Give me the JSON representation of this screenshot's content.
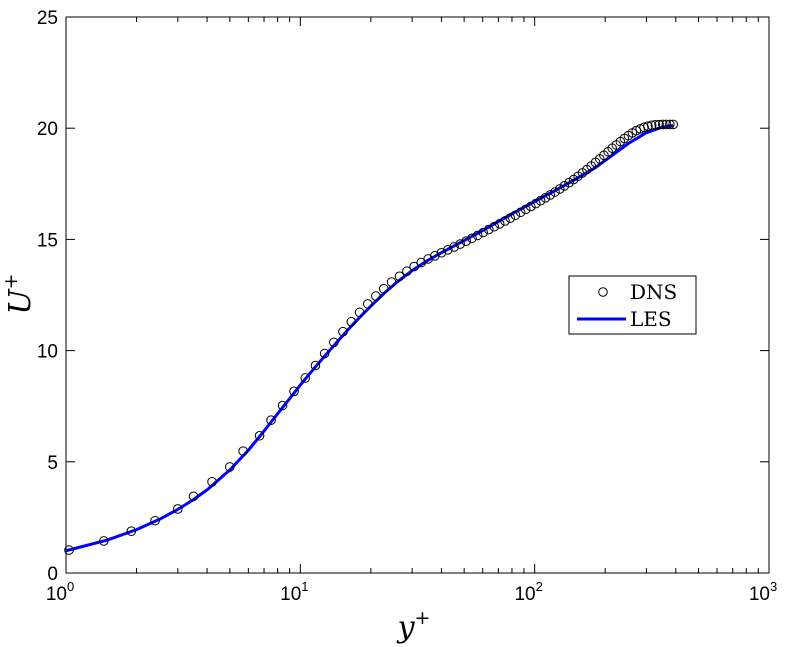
{
  "chart_data": {
    "type": "line",
    "xscale": "log",
    "xlim": [
      1,
      1000
    ],
    "ylim": [
      0,
      25
    ],
    "x_ticks": [
      1,
      10,
      100,
      1000
    ],
    "x_tick_labels": [
      {
        "base": "10",
        "exp": "0"
      },
      {
        "base": "10",
        "exp": "1"
      },
      {
        "base": "10",
        "exp": "2"
      },
      {
        "base": "10",
        "exp": "3"
      }
    ],
    "y_ticks": [
      0,
      5,
      10,
      15,
      20,
      25
    ],
    "y_tick_labels": [
      "0",
      "5",
      "10",
      "15",
      "20",
      "25"
    ],
    "xlabel": {
      "base": "y",
      "sup": "+"
    },
    "ylabel": {
      "base": "U",
      "sup": "+"
    },
    "grid": false,
    "legend_position": "right",
    "series": [
      {
        "name": "DNS",
        "style": "markers",
        "marker": "circle",
        "color": "#000000",
        "x": [
          1.03,
          1.45,
          1.9,
          2.4,
          3.0,
          3.5,
          4.2,
          5.0,
          5.7,
          6.7,
          7.5,
          8.4,
          9.4,
          10.5,
          11.6,
          12.7,
          13.9,
          15.2,
          16.5,
          17.9,
          19.4,
          21.0,
          22.7,
          24.5,
          26.5,
          28.5,
          30.6,
          32.8,
          35.1,
          37.5,
          40.0,
          42.6,
          45.3,
          48.1,
          51.0,
          54.0,
          57.1,
          60.3,
          63.7,
          67.2,
          70.9,
          74.7,
          78.7,
          82.8,
          87.1,
          91.6,
          96.3,
          101.1,
          106.0,
          111.2,
          116.6,
          122.2,
          128.0,
          134.0,
          140.2,
          146.6,
          153.2,
          160.0,
          167.0,
          174.3,
          181.8,
          189.5,
          197.5,
          205.7,
          214.2,
          223.0,
          232.1,
          241.5,
          251.2,
          261.2,
          271.5,
          282.1,
          293.0,
          304.2,
          315.7,
          327.5,
          339.6,
          352.0,
          364.6,
          377.5,
          390.0
        ],
        "y": [
          1.03,
          1.44,
          1.88,
          2.35,
          2.88,
          3.45,
          4.1,
          4.77,
          5.48,
          6.17,
          6.87,
          7.53,
          8.17,
          8.77,
          9.33,
          9.87,
          10.37,
          10.85,
          11.3,
          11.72,
          12.1,
          12.45,
          12.78,
          13.08,
          13.34,
          13.57,
          13.78,
          13.96,
          14.12,
          14.26,
          14.4,
          14.53,
          14.66,
          14.79,
          14.92,
          15.05,
          15.18,
          15.31,
          15.44,
          15.57,
          15.7,
          15.83,
          15.96,
          16.09,
          16.22,
          16.35,
          16.48,
          16.61,
          16.74,
          16.87,
          17.0,
          17.13,
          17.27,
          17.41,
          17.55,
          17.69,
          17.84,
          17.99,
          18.14,
          18.3,
          18.46,
          18.62,
          18.78,
          18.94,
          19.1,
          19.25,
          19.4,
          19.54,
          19.67,
          19.79,
          19.89,
          19.97,
          20.04,
          20.09,
          20.13,
          20.15,
          20.16,
          20.17,
          20.17,
          20.17,
          20.17
        ]
      },
      {
        "name": "LES",
        "style": "line",
        "color": "#0000ff",
        "x": [
          1.0,
          1.5,
          2.0,
          2.5,
          3.0,
          3.5,
          4.0,
          5.0,
          6.0,
          7.0,
          8.0,
          9.0,
          10.0,
          11.0,
          12.0,
          14.0,
          16.0,
          18.0,
          20.0,
          23.0,
          26.0,
          30.0,
          35.0,
          40.0,
          50.0,
          60.0,
          70.0,
          80.0,
          100.0,
          120.0,
          150.0,
          180.0,
          200.0,
          250.0,
          300.0,
          350.0,
          390.0
        ],
        "y": [
          1.0,
          1.48,
          1.95,
          2.41,
          2.86,
          3.3,
          3.74,
          4.63,
          5.52,
          6.38,
          7.16,
          7.84,
          8.45,
          8.98,
          9.45,
          10.26,
          10.95,
          11.52,
          12.0,
          12.62,
          13.1,
          13.6,
          14.06,
          14.4,
          14.95,
          15.4,
          15.8,
          16.15,
          16.7,
          17.15,
          17.72,
          18.2,
          18.55,
          19.3,
          19.8,
          20.05,
          20.12
        ]
      }
    ]
  }
}
